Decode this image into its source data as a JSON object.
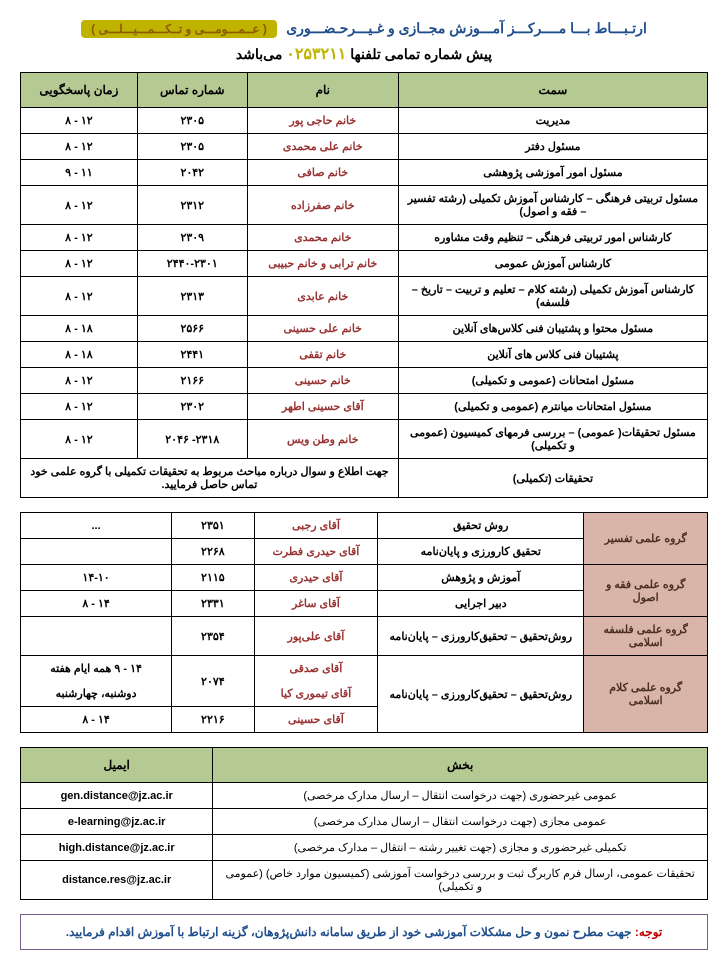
{
  "header": {
    "main_before": "ارتـبـــاط  بـــا  مــــرکـــز  آمـــوزش  مجــازی و غـیـــرحـضـــوری",
    "yellow": "( عــمـــومـــی و تــکـــمـــیـــلـــی )",
    "sub_before": "پیش شماره تمامی تلفنها",
    "prefix_number": "۰۲۵۳۲۱۱",
    "sub_after": "می‌باشد"
  },
  "table1": {
    "headers": {
      "c1": "سمت",
      "c2": "نام",
      "c3": "شماره تماس",
      "c4": "زمان پاسخگویی"
    },
    "rows": [
      {
        "pos": "مدیریت",
        "name": "خانم حاجی پور",
        "phone": "۲۳۰۵",
        "time": "۱۲ - ۸"
      },
      {
        "pos": "مسئول دفتر",
        "name": "خانم علی محمدی",
        "phone": "۲۳۰۵",
        "time": "۱۲ - ۸"
      },
      {
        "pos": "مسئول امور آموزشی پژوهشی",
        "name": "خانم صافی",
        "phone": "۲۰۴۲",
        "time": "۱۱ - ۹"
      },
      {
        "pos": "مسئول تربیتی فرهنگی – کارشناس آموزش تکمیلی (رشته تفسیر – فقه و اصول)",
        "name": "خانم صفرزاده",
        "phone": "۲۳۱۲",
        "time": "۱۲ - ۸"
      },
      {
        "pos": "کارشناس امور تربیتی فرهنگی – تنظیم وقت مشاوره",
        "name": "خانم محمدی",
        "phone": "۲۳۰۹",
        "time": "۱۲ - ۸"
      },
      {
        "pos": "کارشناس آموزش عمومی",
        "name": "خانم ترابی و خانم حبیبی",
        "phone": "۲۴۴۰-۲۳۰۱",
        "time": "۱۲ - ۸"
      },
      {
        "pos": "کارشناس آموزش تکمیلی (رشته کلام – تعلیم و تربیت – تاریخ – فلسفه)",
        "name": "خانم عابدی",
        "phone": "۲۳۱۳",
        "time": "۱۲ - ۸"
      },
      {
        "pos": "مسئول محتوا و پشتیبان فنی کلاس‌های آنلاین",
        "name": "خانم علی حسینی",
        "phone": "۲۵۶۶",
        "time": "۱۸ - ۸"
      },
      {
        "pos": "پشتیبان فنی کلاس های آنلاین",
        "name": "خانم تقفی",
        "phone": "۲۴۴۱",
        "time": "۱۸ - ۸"
      },
      {
        "pos": "مسئول امتحانات (عمومی و تکمیلی)",
        "name": "خانم حسینی",
        "phone": "۲۱۶۶",
        "time": "۱۲ - ۸"
      },
      {
        "pos": "مسئول امتحانات میانترم (عمومی و تکمیلی)",
        "name": "آقای حسینی اطهر",
        "phone": "۲۳۰۲",
        "time": "۱۲ - ۸"
      },
      {
        "pos": "مسئول تحقیقات( عمومی) – بررسی فرمهای کمیسیون (عمومی و تکمیلی)",
        "name": "خانم وطن ویس",
        "phone": "۲۳۱۸- ۲۰۴۶",
        "time": "۱۲ - ۸"
      }
    ],
    "merged": {
      "right": "تحقیقات (تکمیلی)",
      "left": "جهت اطلاع و سوال درباره مباحث مربوط به تحقیقات تکمیلی با گروه علمی خود تماس حاصل فرمایید."
    }
  },
  "table2": {
    "rows": [
      {
        "group": "گروه علمی تفسیر",
        "role": "روش تحقیق",
        "name": "آقای رجبی",
        "phone": "۲۳۵۱",
        "time": "...",
        "rowspan": 2
      },
      {
        "role": "تحقیق کارورزی و پایان‌نامه",
        "name": "آقای حیدری فطرت",
        "phone": "۲۲۶۸",
        "time": ""
      },
      {
        "group": "گروه علمی فقه و اصول",
        "role": "آموزش و پژوهش",
        "name": "آقای حیدری",
        "phone": "۲۱۱۵",
        "time": "۱۴-۱۰",
        "rowspan": 2
      },
      {
        "role": "دبیر اجرایی",
        "name": "آقای ساغر",
        "phone": "۲۳۳۱",
        "time": "۱۴ - ۸"
      },
      {
        "group": "گروه علمی فلسفه اسلامی",
        "role": "روش‌تحقیق – تحقیق‌کارورزی – پایان‌نامه",
        "name": "آقای علی‌پور",
        "phone": "۲۳۵۴",
        "time": "",
        "rowspan": 1
      },
      {
        "group": "گروه علمی کلام اسلامی",
        "role": "روش‌تحقیق – تحقیق‌کارورزی – پایان‌نامه",
        "name_a": "آقای صدقی",
        "name_b": "آقای تیموری کیا",
        "phone": "۲۰۷۴",
        "time_a": "۱۴ - ۹ همه ایام هفته",
        "time_b": "دوشنبه، چهارشنبه",
        "rowspan": 2
      },
      {
        "role": "",
        "name": "آقای حسینی",
        "phone": "۲۲۱۶",
        "time": "۱۴ - ۸"
      }
    ]
  },
  "table3": {
    "headers": {
      "c1": "بخش",
      "c2": "ایمیل"
    },
    "rows": [
      {
        "dept": "عمومی غیرحضوری (جهت درخواست انتقال – ارسال مدارک مرخصی)",
        "email": "gen.distance@jz.ac.ir"
      },
      {
        "dept": "عمومی مجازی (جهت درخواست انتقال – ارسال مدارک مرخصی)",
        "email": "e-learning@jz.ac.ir"
      },
      {
        "dept": "تکمیلی غیرحضوری و مجازی (جهت تغییر رشته – انتقال – مدارک مرخصی)",
        "email": "high.distance@jz.ac.ir"
      },
      {
        "dept": "تحقیقات عمومی، ارسال فرم کاربرگ ثبت و بررسی درخواست آموزشی (کمیسیون موارد خاص) (عمومی و تکمیلی)",
        "email": "distance.res@jz.ac.ir"
      }
    ]
  },
  "notice": {
    "attention": "توجه:",
    "text": "جهت مطرح نمون و حل مشکلات آموزشی خود از طریق سامانه دانش‌پژوهان، گزینه ارتباط با آموزش اقدام فرمایید."
  }
}
